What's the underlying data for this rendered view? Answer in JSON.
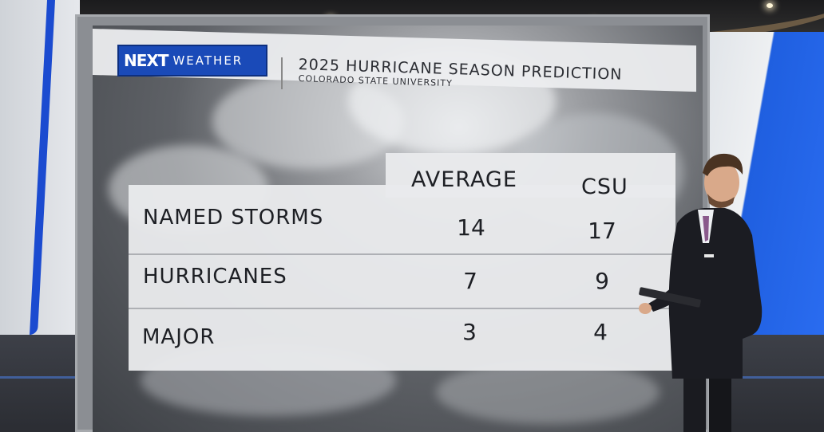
{
  "logo": {
    "brand": "NEXT",
    "sub": "WEATHER"
  },
  "header": {
    "title": "2025 HURRICANE SEASON PREDICTION",
    "subtitle": "COLORADO STATE UNIVERSITY"
  },
  "table": {
    "columns": [
      "AVERAGE",
      "CSU"
    ],
    "rows": [
      {
        "label": "NAMED STORMS",
        "average": "14",
        "csu": "17"
      },
      {
        "label": "HURRICANES",
        "average": "7",
        "csu": "9"
      },
      {
        "label": "MAJOR",
        "average": "3",
        "csu": "4"
      }
    ]
  },
  "colors": {
    "brand_blue": "#1a4ab8",
    "panel": "#e9eaec",
    "text": "#1d1f24"
  }
}
